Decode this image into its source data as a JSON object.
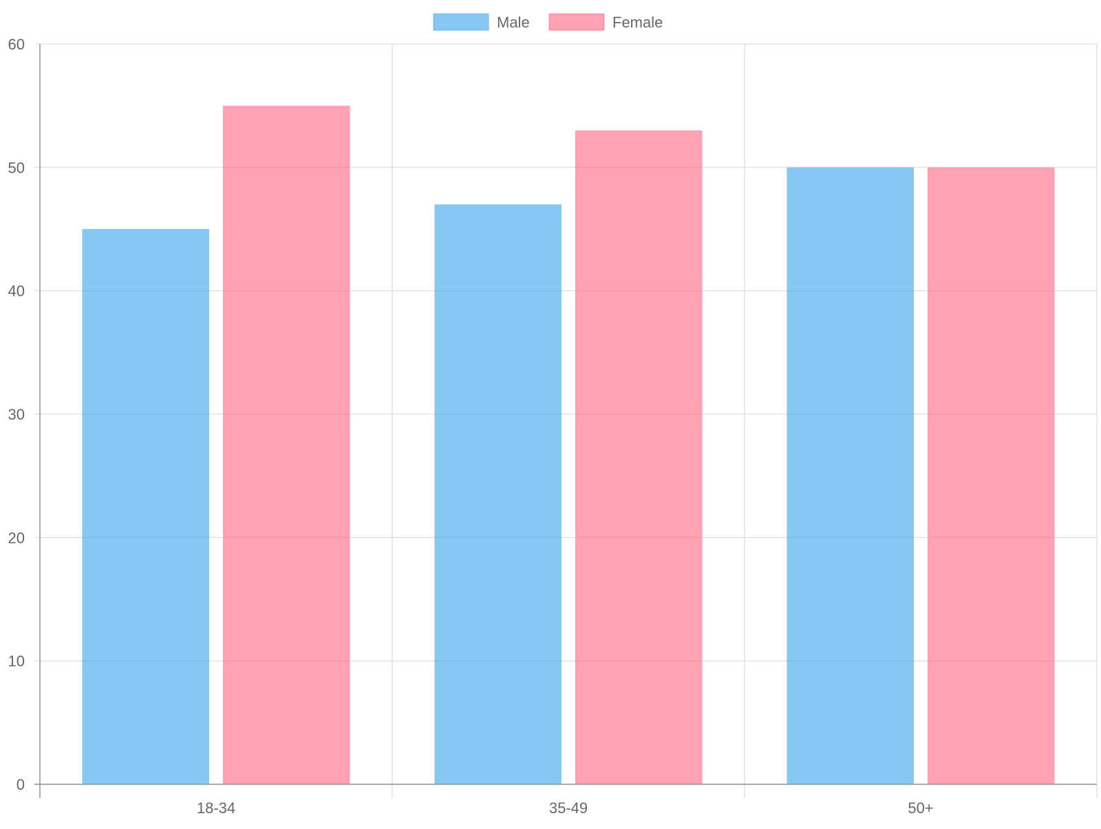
{
  "chart_data": {
    "type": "bar",
    "categories": [
      "18-34",
      "35-49",
      "50+"
    ],
    "series": [
      {
        "name": "Male",
        "values": [
          45,
          47,
          50
        ],
        "color": "#36a2eb"
      },
      {
        "name": "Female",
        "values": [
          55,
          53,
          50
        ],
        "color": "#ff6384"
      }
    ],
    "ylim": [
      0,
      60
    ],
    "yticks": [
      0,
      10,
      20,
      30,
      40,
      50,
      60
    ],
    "grid": true,
    "legend_position": "top-center",
    "title": "",
    "xlabel": "",
    "ylabel": ""
  }
}
